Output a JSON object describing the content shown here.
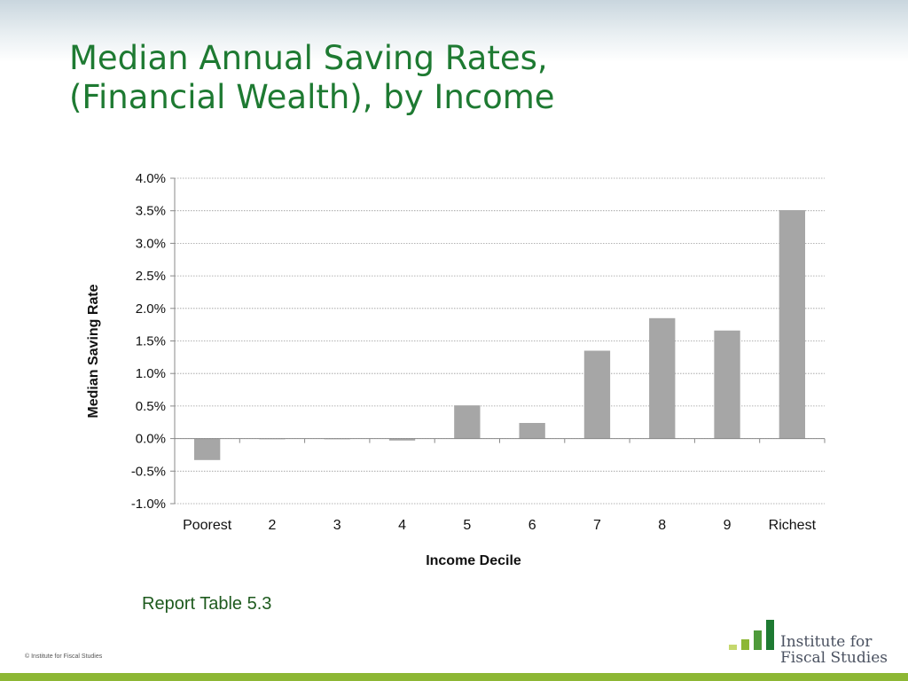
{
  "slide": {
    "title_line1": "Median Annual Saving Rates,",
    "title_line2": "(Financial Wealth), by Income",
    "source_note": "Report Table 5.3",
    "copyright": "© Institute for Fiscal Studies",
    "logo_line1": "Institute for",
    "logo_line2": "Fiscal Studies"
  },
  "colors": {
    "title": "#1e7a32",
    "bar": "#a6a6a6",
    "accent_bar": "#8db734",
    "logo_bars": [
      "#c5d86d",
      "#8db734",
      "#4e9a3a",
      "#1e7a32"
    ]
  },
  "chart_data": {
    "type": "bar",
    "title": "",
    "xlabel": "Income Decile",
    "ylabel": "Median Saving Rate",
    "categories": [
      "Poorest",
      "2",
      "3",
      "4",
      "5",
      "6",
      "7",
      "8",
      "9",
      "Richest"
    ],
    "values": [
      -0.0033,
      0.0,
      0.0,
      -0.0003,
      0.0051,
      0.0024,
      0.0135,
      0.0185,
      0.0166,
      0.0351
    ],
    "ylim": [
      -0.01,
      0.04
    ],
    "yticks": [
      -0.01,
      -0.005,
      0.0,
      0.005,
      0.01,
      0.015,
      0.02,
      0.025,
      0.03,
      0.035,
      0.04
    ],
    "ytick_labels": [
      "-1.0%",
      "-0.5%",
      "0.0%",
      "0.5%",
      "1.0%",
      "1.5%",
      "2.0%",
      "2.5%",
      "3.0%",
      "3.5%",
      "4.0%"
    ],
    "grid": true,
    "legend": "none"
  }
}
